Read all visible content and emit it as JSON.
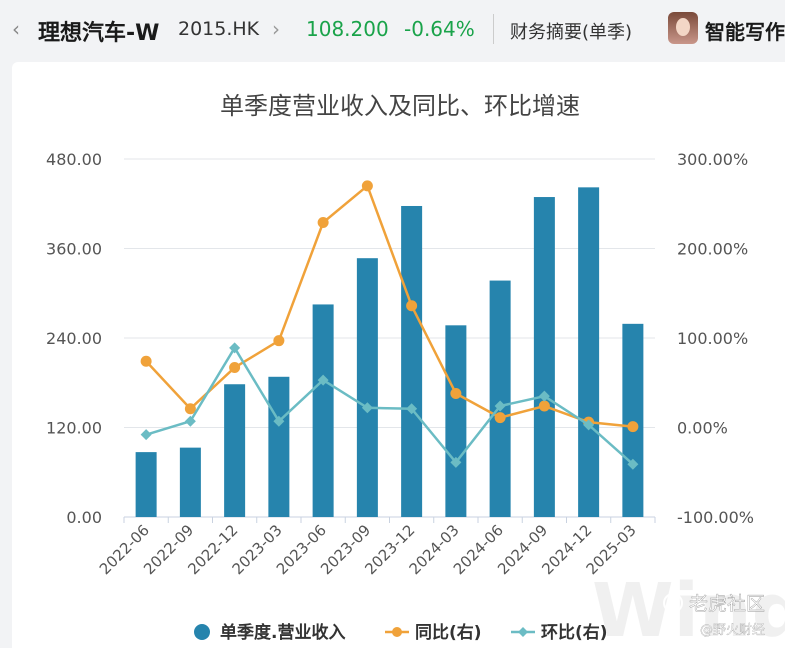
{
  "header": {
    "back_icon": "chevron-left-icon",
    "stock_name": "理想汽车-W",
    "stock_code": "2015.HK",
    "nav_icon": "chevron-right-icon",
    "price": "108.200",
    "change_pct": "-0.64%",
    "summary_tab": "财务摘要(单季)",
    "ai_label": "智能写作",
    "colors": {
      "down": "#1aa34a"
    }
  },
  "watermark": {
    "brand": "Wind",
    "community": "老虎社区",
    "author": "@野火财经"
  },
  "chart_data": {
    "type": "bar",
    "title": "单季度营业收入及同比、环比增速",
    "categories": [
      "2022-06",
      "2022-09",
      "2022-12",
      "2023-03",
      "2023-06",
      "2023-09",
      "2023-12",
      "2024-03",
      "2024-06",
      "2024-09",
      "2024-12",
      "2025-03"
    ],
    "y_left": {
      "ticks": [
        "480.00",
        "360.00",
        "240.00",
        "120.00",
        "0.00"
      ],
      "range": [
        0,
        480
      ]
    },
    "y_right": {
      "ticks": [
        "300.00%",
        "200.00%",
        "100.00%",
        "0.00%",
        "-100.00%"
      ],
      "range": [
        -100,
        300
      ]
    },
    "grid": true,
    "legend_position": "bottom",
    "series": [
      {
        "name": "单季度.营业收入",
        "type": "bar",
        "axis": "left",
        "color": "#2684ad",
        "values": [
          87,
          93,
          178,
          188,
          285,
          347,
          417,
          257,
          317,
          429,
          442,
          259
        ]
      },
      {
        "name": "同比(右)",
        "type": "line",
        "axis": "right",
        "color": "#f0a23a",
        "values": [
          74,
          21,
          67,
          97,
          229,
          270,
          136,
          38,
          11,
          24,
          6,
          1
        ]
      },
      {
        "name": "环比(右)",
        "type": "line",
        "axis": "right",
        "color": "#6bbcc4",
        "values": [
          -8,
          7,
          89,
          7,
          53,
          22,
          21,
          -39,
          24,
          35,
          3,
          -41
        ]
      }
    ]
  }
}
